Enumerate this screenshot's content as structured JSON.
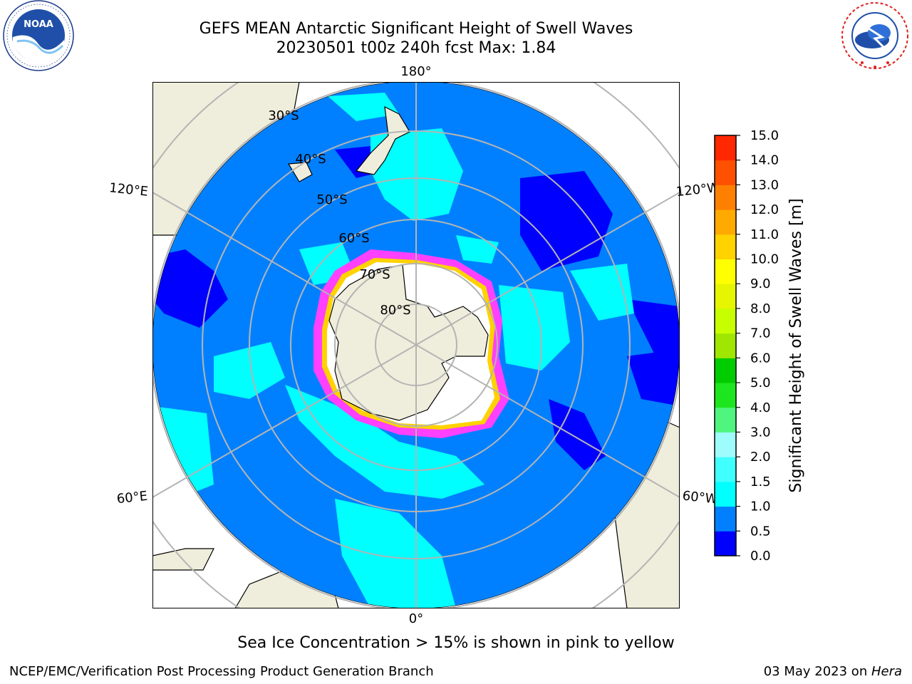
{
  "title": {
    "line1": "GEFS MEAN Antarctic Significant Height of Swell Waves",
    "line2": "20230501 t00z 240h fcst   Max: 1.84"
  },
  "logos": {
    "noaa": {
      "label": "NOAA",
      "ring_text": "NATIONAL OCEANIC AND ATMOSPHERIC ADMINISTRATION · U.S. DEPARTMENT OF COMMERCE"
    },
    "nws": {
      "ring_text": "NATIONAL WEATHER SERVICE"
    }
  },
  "map": {
    "projection": "south-polar-stereographic",
    "longitude_labels": {
      "top": "180°",
      "bottom": "0°",
      "upper_left": "120°E",
      "upper_right": "120°W",
      "lower_left": "60°E",
      "lower_right": "60°W"
    },
    "latitude_labels": [
      "30°S",
      "40°S",
      "50°S",
      "60°S",
      "70°S",
      "80°S"
    ],
    "colors": {
      "land": "#efeedc",
      "ocean_low": "#0000ff",
      "ocean": "#0080ff",
      "ocean_mid": "#00ffff",
      "ice_edge": "#ff40ff",
      "grid": "#b4b4b4"
    }
  },
  "colorbar": {
    "label": "Significant Height of Swell Waves [m]",
    "ticks": [
      "0.0",
      "0.5",
      "1.0",
      "1.5",
      "2.0",
      "3.0",
      "4.0",
      "5.0",
      "6.0",
      "7.0",
      "8.0",
      "9.0",
      "10.0",
      "11.0",
      "12.0",
      "13.0",
      "14.0",
      "15.0"
    ],
    "colors": [
      "#0000ff",
      "#0080ff",
      "#00ffff",
      "#40ffff",
      "#9ffcfc",
      "#50f580",
      "#1ee61e",
      "#00cc00",
      "#a0e600",
      "#c8ff00",
      "#e6f500",
      "#ffff00",
      "#ffd200",
      "#ffaa00",
      "#ff8000",
      "#ff5000",
      "#ff2800",
      "#ff0000"
    ]
  },
  "note": "Sea Ice Concentration > 15% is shown in pink to yellow",
  "footer": {
    "left": "NCEP/EMC/Verification Post Processing Product Generation Branch",
    "right_prefix": "03 May 2023 on ",
    "right_host": "Hera"
  }
}
